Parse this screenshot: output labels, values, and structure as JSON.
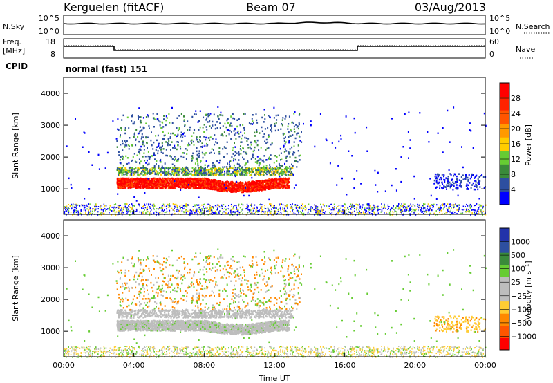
{
  "header": {
    "station": "Kerguelen (fitACF)",
    "beam": "Beam 07",
    "date": "03/Aug/2013"
  },
  "strips": {
    "nsky_label": "N.Sky",
    "nsky_top": "10^5",
    "nsky_bottom": "10^0",
    "nsearch_label": "N.Search",
    "nsearch_top": "10^5",
    "nsearch_bottom": "10^0",
    "freq_label": "Freq.",
    "freq_unit": "[MHz]",
    "freq_top": "18",
    "freq_bottom": "8",
    "nave_label": "Nave",
    "nave_top": "60",
    "nave_bottom": "0",
    "cpid_label": "CPID",
    "cpid_value": "normal (fast) 151"
  },
  "colors": {
    "power": [
      "#0000ff",
      "#2d4fa0",
      "#3a8a3a",
      "#66cc33",
      "#ffcc00",
      "#ff9900",
      "#ff5500",
      "#ff2200",
      "#ff0000"
    ],
    "velocity": [
      "#ff0000",
      "#ff5500",
      "#ff8800",
      "#ffcc33",
      "#bdbdbd",
      "#bdbdbd",
      "#66cc33",
      "#3a8a3a",
      "#2d4fa0",
      "#2233aa"
    ]
  },
  "chart_data": [
    {
      "type": "heatmap",
      "panel": "power",
      "ylabel": "Slant Range [km]",
      "yticks": [
        "4000",
        "3000",
        "2000",
        "1000"
      ],
      "ylim": [
        200,
        4500
      ],
      "xlim": [
        0,
        24
      ],
      "colorbar_label": "Power [dB]",
      "colorbar_ticks": [
        "28",
        "24",
        "20",
        "16",
        "12",
        "8",
        "4"
      ],
      "regions": [
        {
          "t0": 3.0,
          "t1": 12.8,
          "r0": 1150,
          "r1": 1450,
          "value": "high"
        },
        {
          "t0": 3.0,
          "t1": 13.0,
          "r0": 1450,
          "r1": 1650,
          "value": "mid"
        },
        {
          "t0": 3.0,
          "t1": 13.5,
          "r0": 1650,
          "r1": 3400,
          "value": "sparse"
        },
        {
          "t0": 20.5,
          "t1": 24.0,
          "r0": 1000,
          "r1": 1500,
          "value": "sparse"
        }
      ]
    },
    {
      "type": "heatmap",
      "panel": "velocity",
      "ylabel": "Slant Range [km]",
      "yticks": [
        "4000",
        "3000",
        "2000",
        "1000"
      ],
      "ylim": [
        200,
        4500
      ],
      "xlim": [
        0,
        24
      ],
      "xticks": [
        "00:00",
        "04:00",
        "08:00",
        "12:00",
        "16:00",
        "20:00",
        "00:00"
      ],
      "xlabel": "Time UT",
      "colorbar_label": "Velocity [m s⁻¹]",
      "colorbar_ticks": [
        "1000",
        "500",
        "100",
        "25",
        "−25",
        "−100",
        "−500",
        "−1000"
      ]
    }
  ]
}
